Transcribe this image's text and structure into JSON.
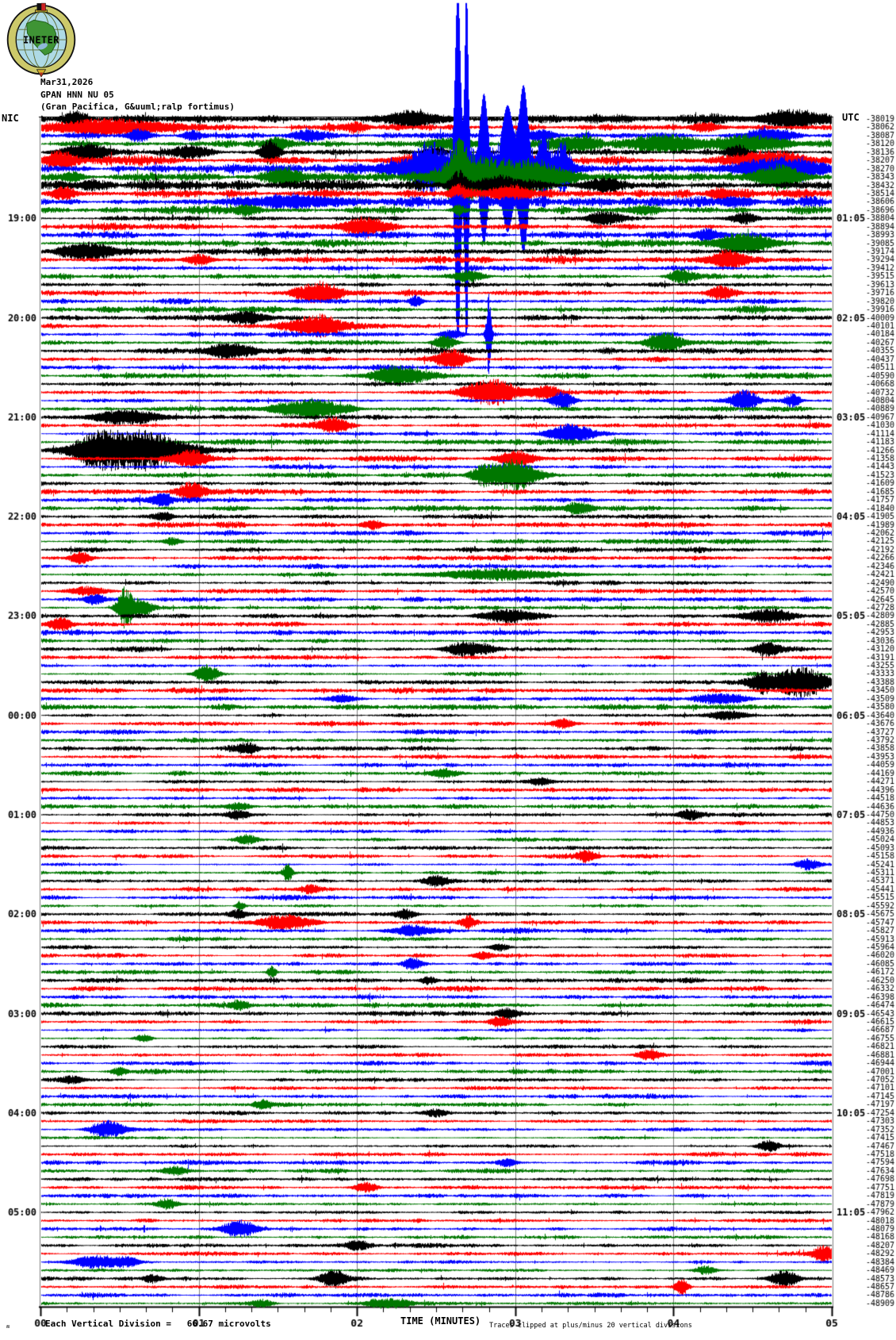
{
  "page": {
    "background": "#ffffff"
  },
  "logo": {
    "text": "INETER"
  },
  "header": {
    "date": "Mar31,2026",
    "station": "GPAN HNN NU 05",
    "location": "(Gran Pacifica, G&uuml;ralp fortimus)"
  },
  "corner_labels": {
    "left": "NIC",
    "right": "UTC"
  },
  "x_axis": {
    "title": "TIME (MINUTES)",
    "tick_labels": [
      "00",
      "01",
      "02",
      "03",
      "04",
      "05"
    ],
    "minor_ticks_per_division": 6
  },
  "footer": {
    "margin_glyph": "ʍ",
    "scale_note": "Each Vertical Division =   66.67 microvolts",
    "clip_note": "Traces clipped at plus/minus 20 vertical divisions"
  },
  "chart_data": {
    "type": "helicorder",
    "station": "GPAN HNN NU 05",
    "row_duration_minutes": 5,
    "row_count": 144,
    "x_range_minutes": [
      0,
      5
    ],
    "clip_divisions": 20,
    "trace_colors_cycle": [
      "#000000",
      "#ff0000",
      "#0000ff",
      "#007700"
    ],
    "grid_color": "#808080",
    "nic_hour_labels": [
      {
        "row": 12,
        "label": "19:00"
      },
      {
        "row": 24,
        "label": "20:00"
      },
      {
        "row": 36,
        "label": "21:00"
      },
      {
        "row": 48,
        "label": "22:00"
      },
      {
        "row": 60,
        "label": "23:00"
      },
      {
        "row": 72,
        "label": "00:00"
      },
      {
        "row": 84,
        "label": "01:00"
      },
      {
        "row": 96,
        "label": "02:00"
      },
      {
        "row": 108,
        "label": "03:00"
      },
      {
        "row": 120,
        "label": "04:00"
      },
      {
        "row": 132,
        "label": "05:00"
      }
    ],
    "utc_hour_labels": [
      {
        "row": 12,
        "label": "01:05"
      },
      {
        "row": 24,
        "label": "02:05"
      },
      {
        "row": 36,
        "label": "03:05"
      },
      {
        "row": 48,
        "label": "04:05"
      },
      {
        "row": 60,
        "label": "05:05"
      },
      {
        "row": 72,
        "label": "06:05"
      },
      {
        "row": 84,
        "label": "07:05"
      },
      {
        "row": 96,
        "label": "08:05"
      },
      {
        "row": 108,
        "label": "09:05"
      },
      {
        "row": 120,
        "label": "10:05"
      },
      {
        "row": 132,
        "label": "11:05"
      }
    ],
    "row_offsets": [
      -38019,
      -38062,
      -38087,
      -38120,
      -38136,
      -38207,
      -38270,
      -38343,
      -38432,
      -38514,
      -38606,
      -38696,
      -38804,
      -38894,
      -38993,
      -39085,
      -39174,
      -39294,
      -39412,
      -39515,
      -39613,
      -39716,
      -39820,
      -39916,
      -40009,
      -40101,
      -40184,
      -40267,
      -40355,
      -40437,
      -40511,
      -40590,
      -40668,
      -40732,
      -40804,
      -40889,
      -40967,
      -41030,
      -41114,
      -41183,
      -41266,
      -41358,
      -41443,
      -41523,
      -41609,
      -41685,
      -41757,
      -41840,
      -41905,
      -41989,
      -42062,
      -42125,
      -42192,
      -42266,
      -42346,
      -42421,
      -42490,
      -42570,
      -42645,
      -42728,
      -42809,
      -42885,
      -42953,
      -43036,
      -43120,
      -43191,
      -43255,
      -43333,
      -43388,
      -43450,
      -43509,
      -43580,
      -43640,
      -43676,
      -43727,
      -43792,
      -43858,
      -43953,
      -44059,
      -44169,
      -44271,
      -44396,
      -44518,
      -44636,
      -44750,
      -44853,
      -44936,
      -45024,
      -45093,
      -45158,
      -45241,
      -45311,
      -45371,
      -45441,
      -45515,
      -45592,
      -45675,
      -45747,
      -45827,
      -45913,
      -45964,
      -46020,
      -46085,
      -46172,
      -46250,
      -46332,
      -46398,
      -46474,
      -46543,
      -46615,
      -46687,
      -46755,
      -46821,
      -46881,
      -46944,
      -47001,
      -47052,
      -47101,
      -47145,
      -47197,
      -47254,
      -47303,
      -47352,
      -47415,
      -47467,
      -47518,
      -47594,
      -47634,
      -47698,
      -47751,
      -47819,
      -47879,
      -47962,
      -48018,
      -48079,
      -48168,
      -48207,
      -48292,
      -48384,
      -48469,
      -48573,
      -48657,
      -48786,
      -48909
    ],
    "noise": {
      "seed": 20260331,
      "baseline_amp_by_range": [
        {
          "from": 0,
          "to": 11,
          "amp": 3.4
        },
        {
          "from": 12,
          "to": 23,
          "amp": 2.7
        },
        {
          "from": 24,
          "to": 47,
          "amp": 2.3
        },
        {
          "from": 48,
          "to": 71,
          "amp": 2.1
        },
        {
          "from": 72,
          "to": 107,
          "amp": 1.8
        },
        {
          "from": 108,
          "to": 143,
          "amp": 1.7
        }
      ]
    },
    "events": [
      [
        0,
        0.22,
        7,
        0.05
      ],
      [
        0,
        2.35,
        9,
        0.12
      ],
      [
        0,
        4.75,
        10,
        0.15
      ],
      [
        1,
        0.45,
        10,
        0.25
      ],
      [
        1,
        2.0,
        5,
        0.05
      ],
      [
        1,
        4.2,
        6,
        0.06
      ],
      [
        2,
        0.62,
        8,
        0.05
      ],
      [
        2,
        0.95,
        7,
        0.04
      ],
      [
        2,
        1.7,
        6,
        0.08
      ],
      [
        2,
        3.15,
        7,
        0.06
      ],
      [
        2,
        4.6,
        7,
        0.1
      ],
      [
        3,
        1.5,
        9,
        0.05
      ],
      [
        3,
        2.6,
        7,
        0.1
      ],
      [
        3,
        3.35,
        8,
        0.1
      ],
      [
        3,
        3.95,
        11,
        0.12
      ],
      [
        3,
        4.45,
        10,
        0.2
      ],
      [
        4,
        0.28,
        11,
        0.1
      ],
      [
        4,
        0.95,
        7,
        0.07
      ],
      [
        4,
        1.45,
        15,
        0.04
      ],
      [
        4,
        2.5,
        6,
        0.05
      ],
      [
        4,
        4.4,
        6,
        0.05
      ],
      [
        5,
        0.12,
        10,
        0.06
      ],
      [
        5,
        2.35,
        7,
        0.1
      ],
      [
        5,
        4.6,
        10,
        0.15
      ],
      [
        6,
        2.635,
        210,
        0.015
      ],
      [
        6,
        2.69,
        205,
        0.01
      ],
      [
        6,
        2.8,
        70,
        0.02
      ],
      [
        6,
        2.95,
        60,
        0.03
      ],
      [
        6,
        3.05,
        90,
        0.025
      ],
      [
        6,
        3.18,
        40,
        0.03
      ],
      [
        6,
        3.3,
        30,
        0.04
      ],
      [
        6,
        2.45,
        18,
        0.06
      ],
      [
        6,
        2.75,
        25,
        0.3
      ],
      [
        6,
        4.7,
        12,
        0.2
      ],
      [
        7,
        2.64,
        30,
        0.05
      ],
      [
        7,
        2.75,
        22,
        0.15
      ],
      [
        7,
        3.1,
        18,
        0.15
      ],
      [
        7,
        1.55,
        10,
        0.08
      ],
      [
        7,
        4.65,
        16,
        0.1
      ],
      [
        7,
        0.2,
        6,
        0.05
      ],
      [
        8,
        2.64,
        18,
        0.04
      ],
      [
        8,
        2.9,
        10,
        0.1
      ],
      [
        8,
        3.55,
        9,
        0.08
      ],
      [
        8,
        0.3,
        5,
        0.04
      ],
      [
        9,
        2.64,
        12,
        0.04
      ],
      [
        9,
        0.15,
        7,
        0.05
      ],
      [
        9,
        2.95,
        10,
        0.08
      ],
      [
        9,
        4.3,
        6,
        0.05
      ],
      [
        10,
        1.6,
        7,
        0.2
      ],
      [
        10,
        2.64,
        8,
        0.03
      ],
      [
        10,
        4.4,
        5,
        0.06
      ],
      [
        11,
        1.3,
        5,
        0.05
      ],
      [
        11,
        2.64,
        6,
        0.03
      ],
      [
        11,
        3.8,
        5,
        0.08
      ],
      [
        12,
        3.55,
        8,
        0.07
      ],
      [
        12,
        4.45,
        7,
        0.06
      ],
      [
        13,
        2.05,
        11,
        0.1
      ],
      [
        14,
        4.2,
        7,
        0.06
      ],
      [
        15,
        4.45,
        12,
        0.12
      ],
      [
        16,
        0.3,
        11,
        0.12
      ],
      [
        17,
        1.0,
        7,
        0.06
      ],
      [
        17,
        4.35,
        12,
        0.08
      ],
      [
        19,
        2.7,
        7,
        0.07
      ],
      [
        19,
        4.05,
        9,
        0.05
      ],
      [
        21,
        1.75,
        13,
        0.1
      ],
      [
        21,
        4.3,
        9,
        0.06
      ],
      [
        22,
        2.37,
        7,
        0.03
      ],
      [
        24,
        1.3,
        7,
        0.1
      ],
      [
        25,
        1.75,
        14,
        0.12
      ],
      [
        26,
        2.83,
        50,
        0.012
      ],
      [
        26,
        2.6,
        6,
        0.05
      ],
      [
        27,
        2.55,
        9,
        0.05
      ],
      [
        27,
        3.95,
        12,
        0.08
      ],
      [
        28,
        1.2,
        9,
        0.1
      ],
      [
        29,
        2.6,
        13,
        0.07
      ],
      [
        31,
        2.25,
        12,
        0.12
      ],
      [
        33,
        2.85,
        16,
        0.12
      ],
      [
        33,
        3.2,
        8,
        0.06
      ],
      [
        34,
        3.3,
        11,
        0.05
      ],
      [
        34,
        4.45,
        13,
        0.06
      ],
      [
        34,
        4.75,
        9,
        0.04
      ],
      [
        35,
        1.7,
        12,
        0.15
      ],
      [
        36,
        0.55,
        10,
        0.15
      ],
      [
        37,
        1.85,
        9,
        0.06
      ],
      [
        38,
        3.35,
        12,
        0.1
      ],
      [
        40,
        0.62,
        25,
        0.22
      ],
      [
        40,
        0.35,
        12,
        0.1
      ],
      [
        41,
        0.95,
        12,
        0.07
      ],
      [
        41,
        3.0,
        10,
        0.08
      ],
      [
        43,
        3.0,
        20,
        0.1
      ],
      [
        43,
        2.8,
        12,
        0.06
      ],
      [
        45,
        0.95,
        12,
        0.06
      ],
      [
        46,
        0.76,
        8,
        0.05
      ],
      [
        47,
        3.4,
        7,
        0.06
      ],
      [
        48,
        0.78,
        6,
        0.04
      ],
      [
        49,
        2.1,
        6,
        0.05
      ],
      [
        51,
        0.83,
        5,
        0.04
      ],
      [
        53,
        0.25,
        7,
        0.05
      ],
      [
        55,
        2.9,
        6,
        0.3
      ],
      [
        57,
        0.3,
        5,
        0.08
      ],
      [
        58,
        0.35,
        5,
        0.05
      ],
      [
        59,
        0.53,
        26,
        0.035
      ],
      [
        59,
        0.63,
        11,
        0.05
      ],
      [
        60,
        2.95,
        9,
        0.12
      ],
      [
        60,
        4.6,
        9,
        0.1
      ],
      [
        61,
        0.12,
        8,
        0.05
      ],
      [
        64,
        2.7,
        9,
        0.1
      ],
      [
        64,
        4.6,
        7,
        0.06
      ],
      [
        67,
        1.05,
        12,
        0.05
      ],
      [
        68,
        4.8,
        20,
        0.12
      ],
      [
        68,
        4.55,
        12,
        0.06
      ],
      [
        70,
        1.9,
        5,
        0.06
      ],
      [
        70,
        4.3,
        6,
        0.1
      ],
      [
        72,
        4.35,
        6,
        0.08
      ],
      [
        73,
        3.3,
        6,
        0.05
      ],
      [
        76,
        1.3,
        5,
        0.05
      ],
      [
        79,
        2.55,
        6,
        0.06
      ],
      [
        80,
        3.15,
        5,
        0.05
      ],
      [
        83,
        1.25,
        5,
        0.05
      ],
      [
        84,
        1.25,
        6,
        0.05
      ],
      [
        84,
        4.1,
        6,
        0.05
      ],
      [
        87,
        1.3,
        6,
        0.05
      ],
      [
        89,
        3.45,
        6,
        0.04
      ],
      [
        90,
        4.85,
        7,
        0.05
      ],
      [
        91,
        1.56,
        11,
        0.02
      ],
      [
        92,
        2.5,
        6,
        0.05
      ],
      [
        93,
        1.7,
        5,
        0.04
      ],
      [
        95,
        1.26,
        6,
        0.02
      ],
      [
        96,
        2.3,
        7,
        0.05
      ],
      [
        96,
        1.25,
        5,
        0.04
      ],
      [
        97,
        1.55,
        9,
        0.12
      ],
      [
        97,
        2.7,
        8,
        0.03
      ],
      [
        98,
        2.35,
        6,
        0.1
      ],
      [
        100,
        2.9,
        5,
        0.04
      ],
      [
        101,
        2.8,
        5,
        0.05
      ],
      [
        102,
        2.35,
        7,
        0.04
      ],
      [
        103,
        1.46,
        8,
        0.02
      ],
      [
        104,
        2.45,
        5,
        0.04
      ],
      [
        107,
        1.25,
        5,
        0.04
      ],
      [
        108,
        2.95,
        6,
        0.05
      ],
      [
        109,
        2.9,
        6,
        0.05
      ],
      [
        111,
        0.65,
        5,
        0.04
      ],
      [
        113,
        3.85,
        7,
        0.05
      ],
      [
        115,
        0.5,
        5,
        0.04
      ],
      [
        116,
        0.2,
        5,
        0.05
      ],
      [
        119,
        1.4,
        5,
        0.04
      ],
      [
        120,
        2.5,
        5,
        0.05
      ],
      [
        122,
        0.42,
        11,
        0.08
      ],
      [
        124,
        4.6,
        7,
        0.05
      ],
      [
        126,
        2.95,
        5,
        0.04
      ],
      [
        127,
        0.85,
        6,
        0.05
      ],
      [
        129,
        2.05,
        6,
        0.05
      ],
      [
        131,
        0.8,
        7,
        0.05
      ],
      [
        134,
        1.26,
        11,
        0.07
      ],
      [
        136,
        2.0,
        5,
        0.05
      ],
      [
        137,
        4.95,
        10,
        0.05
      ],
      [
        138,
        0.35,
        8,
        0.1
      ],
      [
        138,
        0.55,
        6,
        0.05
      ],
      [
        139,
        4.2,
        6,
        0.05
      ],
      [
        140,
        1.85,
        10,
        0.06
      ],
      [
        140,
        0.7,
        5,
        0.04
      ],
      [
        140,
        4.7,
        11,
        0.06
      ],
      [
        141,
        4.05,
        11,
        0.03
      ],
      [
        143,
        2.2,
        6,
        0.1
      ],
      [
        143,
        1.4,
        5,
        0.05
      ]
    ]
  }
}
